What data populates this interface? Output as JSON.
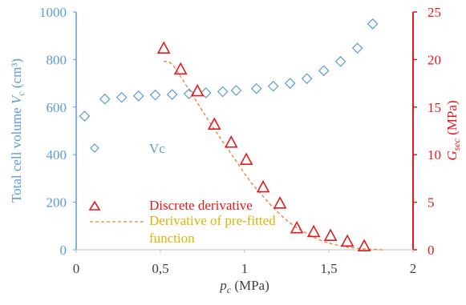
{
  "chart_data": {
    "type": "scatter",
    "x_axis": {
      "label_main": "p",
      "label_sub": "c",
      "label_unit": " (MPa)",
      "range": [
        0,
        2
      ],
      "ticks": [
        0,
        0.5,
        1,
        1.5,
        2
      ],
      "tick_labels": [
        "0",
        "0,5",
        "1",
        "1,5",
        "2"
      ]
    },
    "y_left": {
      "label_main": "Total cell volume ",
      "label_var": "V",
      "label_sub": "c",
      "label_unit": " (cm³)",
      "range": [
        0,
        1000
      ],
      "ticks": [
        0,
        200,
        400,
        600,
        800,
        1000
      ],
      "tick_labels": [
        "0",
        "200",
        "400",
        "600",
        "800",
        "1000"
      ],
      "color": "#5b9bd5"
    },
    "y_right": {
      "label_var": "G",
      "label_sub": "sec",
      "label_unit": " (MPa)",
      "range": [
        0,
        25
      ],
      "ticks": [
        0,
        5,
        10,
        15,
        20,
        25
      ],
      "tick_labels": [
        "0",
        "5",
        "10",
        "15",
        "20",
        "25"
      ],
      "color": "#e31a1c"
    },
    "series": [
      {
        "name": "Vc",
        "axis": "left",
        "marker": "diamond",
        "color": "#5b9bd5",
        "x": [
          0.05,
          0.17,
          0.27,
          0.37,
          0.47,
          0.57,
          0.67,
          0.77,
          0.87,
          0.95,
          1.07,
          1.17,
          1.27,
          1.37,
          1.47,
          1.57,
          1.67,
          1.76
        ],
        "y": [
          562,
          634,
          641,
          647,
          651,
          653,
          656,
          660,
          665,
          670,
          678,
          688,
          700,
          720,
          753,
          792,
          848,
          950
        ]
      },
      {
        "name": "Discrete derivative",
        "axis": "right",
        "marker": "triangle",
        "color": "#e31a1c",
        "x": [
          0.52,
          0.62,
          0.72,
          0.82,
          0.92,
          1.01,
          1.11,
          1.21,
          1.31,
          1.41,
          1.51,
          1.61,
          1.71
        ],
        "y": [
          21.2,
          19.0,
          16.7,
          13.2,
          11.3,
          9.5,
          6.6,
          4.9,
          2.3,
          1.9,
          1.5,
          0.9,
          0.4
        ]
      },
      {
        "name": "Derivative of pre-fitted function",
        "axis": "right",
        "line": "dashed",
        "color": "#ed7d31",
        "x": [
          0.52,
          0.55,
          0.58,
          0.62,
          0.66,
          0.7,
          0.75,
          0.8,
          0.85,
          0.9,
          0.95,
          1.0,
          1.05,
          1.1,
          1.15,
          1.2,
          1.25,
          1.3,
          1.35,
          1.4,
          1.45,
          1.5,
          1.55,
          1.6,
          1.65,
          1.7,
          1.75,
          1.82
        ],
        "y": [
          19.8,
          19.8,
          19.3,
          18.2,
          17.1,
          16.0,
          14.6,
          13.2,
          11.9,
          10.6,
          9.3,
          8.0,
          6.8,
          5.8,
          4.8,
          3.9,
          3.1,
          2.4,
          1.9,
          1.4,
          1.0,
          0.7,
          0.5,
          0.3,
          0.2,
          0.1,
          0.05,
          0.0
        ]
      }
    ],
    "legend": {
      "placement": "center-left",
      "entries": [
        {
          "label": "Vc",
          "color": "#5b9bd5"
        },
        {
          "label": "Discrete derivative",
          "color": "#e31a1c"
        },
        {
          "label_line1": "Derivative of pre-fitted",
          "label_line2": "function",
          "text_color": "#e2b400",
          "line_color": "#ed7d31"
        }
      ]
    },
    "grid": false
  }
}
